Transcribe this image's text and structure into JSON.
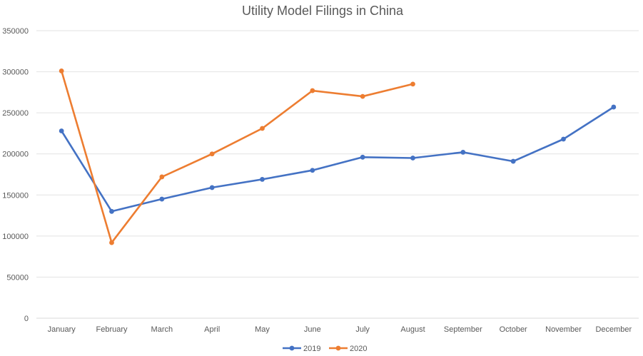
{
  "chart_data": {
    "type": "line",
    "title": "Utility Model Filings in China",
    "xlabel": "",
    "ylabel": "",
    "categories": [
      "January",
      "February",
      "March",
      "April",
      "May",
      "June",
      "July",
      "August",
      "September",
      "October",
      "November",
      "December"
    ],
    "y_ticks": [
      "0",
      "50000",
      "100000",
      "150000",
      "200000",
      "250000",
      "300000",
      "350000"
    ],
    "ylim": [
      0,
      350000
    ],
    "grid": true,
    "legend_position": "bottom",
    "series": [
      {
        "name": "2019",
        "color": "#4472C4",
        "values": [
          228000,
          130000,
          145000,
          159000,
          169000,
          180000,
          196000,
          195000,
          202000,
          191000,
          218000,
          257000
        ]
      },
      {
        "name": "2020",
        "color": "#ED7D31",
        "values": [
          301000,
          92000,
          172000,
          200000,
          231000,
          277000,
          270000,
          285000,
          null,
          null,
          null,
          null
        ]
      }
    ]
  }
}
